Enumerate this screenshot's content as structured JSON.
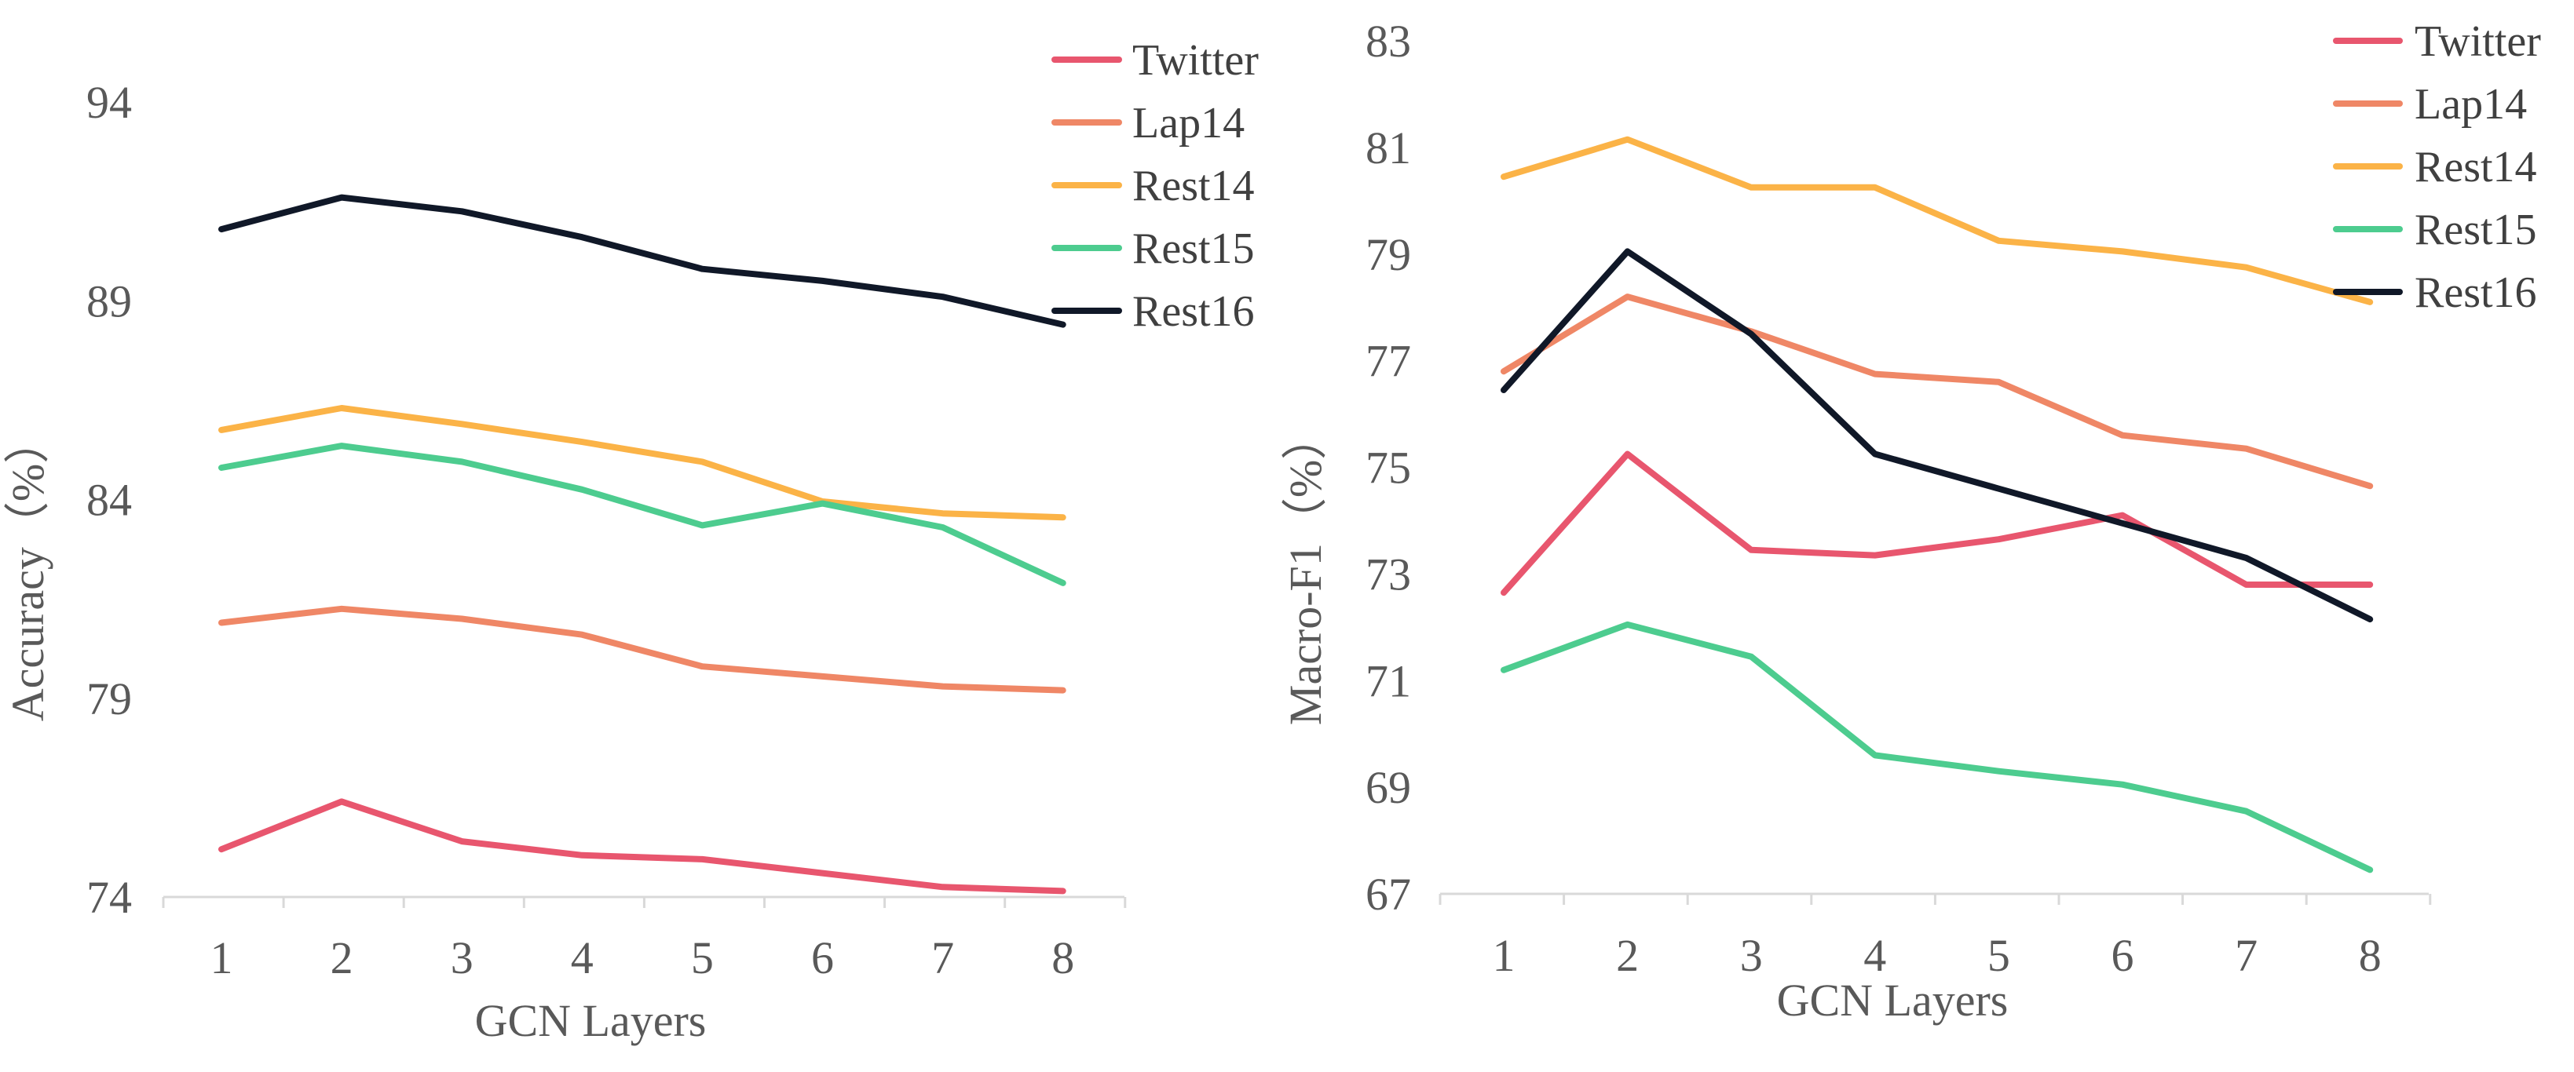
{
  "chart_data": [
    {
      "type": "line",
      "xlabel": "GCN Layers",
      "ylabel": "Accuracy（%）",
      "ylim": [
        74,
        94
      ],
      "yticks": [
        "74",
        "79",
        "84",
        "89",
        "94"
      ],
      "categories": [
        "1",
        "2",
        "3",
        "4",
        "5",
        "6",
        "7",
        "8"
      ],
      "series": [
        {
          "name": "Twitter",
          "color": "#e8566e",
          "values": [
            75.2,
            76.4,
            75.4,
            75.05,
            74.95,
            74.6,
            74.25,
            74.15
          ]
        },
        {
          "name": "Lap14",
          "color": "#ef8766",
          "values": [
            80.9,
            81.25,
            81.0,
            80.6,
            79.8,
            79.55,
            79.3,
            79.2
          ]
        },
        {
          "name": "Rest14",
          "color": "#fbb347",
          "values": [
            85.75,
            86.3,
            85.9,
            85.45,
            84.95,
            83.95,
            83.65,
            83.55
          ]
        },
        {
          "name": "Rest15",
          "color": "#4dcc8f",
          "values": [
            84.8,
            85.35,
            84.95,
            84.25,
            83.35,
            83.9,
            83.3,
            81.9
          ]
        },
        {
          "name": "Rest16",
          "color": "#101828",
          "values": [
            90.8,
            91.6,
            91.25,
            90.6,
            89.8,
            89.5,
            89.1,
            88.4
          ]
        }
      ]
    },
    {
      "type": "line",
      "xlabel": "GCN Layers",
      "ylabel": "Macro-F1（%）",
      "ylim": [
        67,
        83
      ],
      "yticks": [
        "67",
        "69",
        "71",
        "73",
        "75",
        "77",
        "79",
        "81",
        "83"
      ],
      "categories": [
        "1",
        "2",
        "3",
        "4",
        "5",
        "6",
        "7",
        "8"
      ],
      "series": [
        {
          "name": "Twitter",
          "color": "#e8566e",
          "values": [
            72.65,
            75.25,
            73.45,
            73.35,
            73.65,
            74.1,
            72.8,
            72.8
          ]
        },
        {
          "name": "Lap14",
          "color": "#ef8766",
          "values": [
            76.8,
            78.2,
            77.55,
            76.75,
            76.6,
            75.6,
            75.35,
            74.65
          ]
        },
        {
          "name": "Rest14",
          "color": "#fbb347",
          "values": [
            80.45,
            81.15,
            80.25,
            80.25,
            79.25,
            79.05,
            78.75,
            78.1
          ]
        },
        {
          "name": "Rest15",
          "color": "#4dcc8f",
          "values": [
            71.2,
            72.05,
            71.45,
            69.6,
            69.3,
            69.05,
            68.55,
            67.45
          ]
        },
        {
          "name": "Rest16",
          "color": "#101828",
          "values": [
            76.45,
            79.05,
            77.5,
            75.25,
            74.6,
            73.95,
            73.3,
            72.15
          ]
        }
      ]
    }
  ]
}
